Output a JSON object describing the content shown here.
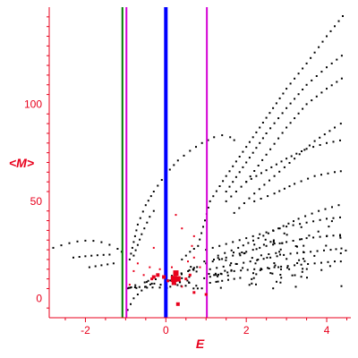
{
  "chart_data": {
    "type": "scatter",
    "title": "",
    "xlabel": "E",
    "ylabel": "<M>",
    "xlim": [
      -2.9,
      4.6
    ],
    "ylim": [
      -10,
      150
    ],
    "x_ticks": [
      -2,
      0,
      2,
      4
    ],
    "x_tick_labels": [
      "-2",
      "0",
      "2",
      "4"
    ],
    "y_ticks": [
      0,
      50,
      100
    ],
    "y_tick_labels": [
      "0",
      "50",
      "100"
    ],
    "grid": false,
    "legend": "none",
    "colors": {
      "axis": "#e8001c",
      "points": "#000000",
      "highlight": "#e8001c",
      "line_green": "#007a00",
      "line_magenta": "#d400d4",
      "line_blue": "#0000ff"
    },
    "vertical_lines": [
      {
        "x": -1.08,
        "color": "#007a00",
        "width": 2
      },
      {
        "x": -0.98,
        "color": "#d400d4",
        "width": 2
      },
      {
        "x": 0.0,
        "color": "#0000ff",
        "width": 4
      },
      {
        "x": 1.02,
        "color": "#d400d4",
        "width": 2
      }
    ],
    "curves": [
      {
        "name": "",
        "points": [
          [
            -2.8,
            26
          ],
          [
            -2.6,
            27.3
          ],
          [
            -2.4,
            28.4
          ],
          [
            -2.2,
            29.3
          ],
          [
            -2.0,
            29.7
          ],
          [
            -1.8,
            29.6
          ],
          [
            -1.6,
            28.9
          ],
          [
            -1.4,
            27.6
          ],
          [
            -1.2,
            25.5
          ],
          [
            -1.0,
            22.5
          ]
        ]
      },
      {
        "name": "",
        "points": [
          [
            -2.3,
            21
          ],
          [
            -2.0,
            21.7
          ],
          [
            -1.7,
            22.2
          ],
          [
            -1.4,
            22.5
          ],
          [
            -1.2,
            22.7
          ]
        ]
      },
      {
        "name": "",
        "points": [
          [
            -1.9,
            16
          ],
          [
            -1.6,
            17
          ],
          [
            -1.3,
            18
          ],
          [
            -1.1,
            18.5
          ]
        ]
      },
      {
        "name": "",
        "points": [
          [
            -0.9,
            20
          ],
          [
            -0.7,
            38
          ],
          [
            -0.5,
            48
          ],
          [
            -0.3,
            55
          ],
          [
            0.0,
            64
          ],
          [
            0.3,
            71
          ],
          [
            0.6,
            76
          ],
          [
            0.9,
            80
          ],
          [
            1.2,
            83
          ],
          [
            1.4,
            84
          ],
          [
            1.6,
            83
          ],
          [
            1.8,
            80
          ]
        ]
      },
      {
        "name": "",
        "points": [
          [
            -0.8,
            22
          ],
          [
            -0.6,
            33
          ],
          [
            -0.4,
            42
          ],
          [
            -0.2,
            48
          ]
        ]
      },
      {
        "name": "",
        "points": [
          [
            0.4,
            20
          ],
          [
            0.6,
            24
          ],
          [
            0.8,
            27
          ],
          [
            1.1,
            50
          ],
          [
            1.5,
            63
          ],
          [
            2.0,
            78
          ],
          [
            2.5,
            93
          ],
          [
            3.0,
            108
          ],
          [
            3.5,
            121
          ],
          [
            4.0,
            135
          ],
          [
            4.5,
            148
          ]
        ]
      },
      {
        "name": "",
        "points": [
          [
            1.5,
            55
          ],
          [
            2.0,
            70
          ],
          [
            2.5,
            85
          ],
          [
            3.0,
            98
          ],
          [
            3.5,
            110
          ],
          [
            4.0,
            119
          ],
          [
            4.5,
            127
          ]
        ]
      },
      {
        "name": "",
        "points": [
          [
            1.5,
            50
          ],
          [
            2.0,
            60
          ],
          [
            2.5,
            74
          ],
          [
            3.0,
            88
          ],
          [
            3.5,
            100
          ],
          [
            4.0,
            108
          ],
          [
            4.5,
            115
          ]
        ]
      },
      {
        "name": "",
        "points": [
          [
            1.7,
            44
          ],
          [
            2.2,
            54
          ],
          [
            2.7,
            63
          ],
          [
            3.2,
            72
          ],
          [
            3.7,
            81
          ],
          [
            4.2,
            88
          ],
          [
            4.5,
            92
          ]
        ]
      },
      {
        "name": "",
        "points": [
          [
            2.0,
            60
          ],
          [
            2.5,
            66
          ],
          [
            3.0,
            72
          ],
          [
            3.5,
            77
          ],
          [
            4.0,
            80
          ],
          [
            4.5,
            82
          ]
        ]
      },
      {
        "name": "",
        "points": [
          [
            2.2,
            50
          ],
          [
            2.7,
            54
          ],
          [
            3.2,
            59
          ],
          [
            3.7,
            63
          ],
          [
            4.2,
            65
          ],
          [
            4.5,
            66
          ]
        ]
      },
      {
        "name": "",
        "points": [
          [
            1.3,
            22
          ],
          [
            1.8,
            26
          ],
          [
            2.3,
            31
          ],
          [
            2.8,
            36
          ],
          [
            3.3,
            41
          ],
          [
            3.8,
            45
          ],
          [
            4.3,
            48
          ],
          [
            4.5,
            50
          ]
        ]
      },
      {
        "name": "",
        "points": [
          [
            1.0,
            25
          ],
          [
            1.5,
            28
          ],
          [
            2.0,
            31
          ],
          [
            2.5,
            34
          ],
          [
            3.0,
            37
          ],
          [
            3.5,
            39
          ],
          [
            4.0,
            41
          ],
          [
            4.5,
            42
          ]
        ]
      },
      {
        "name": "",
        "points": [
          [
            1.0,
            18
          ],
          [
            1.5,
            21
          ],
          [
            2.0,
            24
          ],
          [
            2.5,
            27
          ],
          [
            3.0,
            29
          ],
          [
            3.5,
            31
          ],
          [
            4.0,
            32
          ],
          [
            4.5,
            33
          ]
        ]
      },
      {
        "name": "",
        "points": [
          [
            1.1,
            15
          ],
          [
            1.6,
            17
          ],
          [
            2.1,
            19
          ],
          [
            2.6,
            21
          ],
          [
            3.1,
            23
          ],
          [
            3.6,
            24
          ],
          [
            4.1,
            25
          ],
          [
            4.5,
            26
          ]
        ]
      },
      {
        "name": "",
        "points": [
          [
            1.2,
            12
          ],
          [
            1.7,
            14
          ],
          [
            2.2,
            15
          ],
          [
            2.7,
            16
          ],
          [
            3.2,
            17
          ],
          [
            3.7,
            18
          ],
          [
            4.2,
            19
          ],
          [
            4.5,
            19
          ]
        ]
      },
      {
        "name": "",
        "points": [
          [
            1.1,
            8
          ],
          [
            1.4,
            9
          ],
          [
            1.7,
            10
          ],
          [
            2.0,
            11
          ]
        ]
      },
      {
        "name": "",
        "points": [
          [
            -0.95,
            -6
          ],
          [
            -0.8,
            0
          ],
          [
            -0.6,
            4
          ],
          [
            -0.4,
            8
          ]
        ]
      }
    ],
    "scatter_cloud": {
      "x_range": [
        -1.0,
        4.5
      ],
      "y_range": [
        5,
        45
      ],
      "count": 160
    },
    "highlight_points": [
      {
        "x": 0.2,
        "y": 10,
        "size": 7
      },
      {
        "x": 0.25,
        "y": 13,
        "size": 6
      },
      {
        "x": 0.3,
        "y": 10,
        "size": 6
      },
      {
        "x": 0.2,
        "y": 8,
        "size": 5
      },
      {
        "x": -0.2,
        "y": 12,
        "size": 4
      },
      {
        "x": -0.05,
        "y": 11,
        "size": 4
      },
      {
        "x": -0.3,
        "y": 11,
        "size": 4
      },
      {
        "x": -0.35,
        "y": 10,
        "size": 3
      },
      {
        "x": 0.05,
        "y": 9,
        "size": 3
      },
      {
        "x": 0.5,
        "y": 10,
        "size": 3
      },
      {
        "x": 0.6,
        "y": 12,
        "size": 3
      },
      {
        "x": 0.3,
        "y": -3,
        "size": 4
      },
      {
        "x": 0.7,
        "y": 3,
        "size": 3
      },
      {
        "x": 1.0,
        "y": 2,
        "size": 3
      },
      {
        "x": 0.7,
        "y": 21,
        "size": 2
      },
      {
        "x": 0.65,
        "y": 27,
        "size": 2
      },
      {
        "x": 0.7,
        "y": 32,
        "size": 2
      },
      {
        "x": 0.4,
        "y": 36,
        "size": 2
      },
      {
        "x": 0.25,
        "y": 43,
        "size": 2
      },
      {
        "x": -0.3,
        "y": 26,
        "size": 2
      },
      {
        "x": -0.7,
        "y": 18,
        "size": 2
      },
      {
        "x": -0.8,
        "y": 14,
        "size": 2
      },
      {
        "x": -0.4,
        "y": 16,
        "size": 2
      },
      {
        "x": 0.55,
        "y": 19,
        "size": 2
      },
      {
        "x": 0.85,
        "y": 16,
        "size": 2
      },
      {
        "x": -0.9,
        "y": 7,
        "size": 2
      },
      {
        "x": -0.15,
        "y": 15,
        "size": 2
      },
      {
        "x": 0.4,
        "y": 6,
        "size": 2
      },
      {
        "x": -0.55,
        "y": 12,
        "size": 2
      },
      {
        "x": 0.15,
        "y": 16,
        "size": 2
      }
    ]
  }
}
